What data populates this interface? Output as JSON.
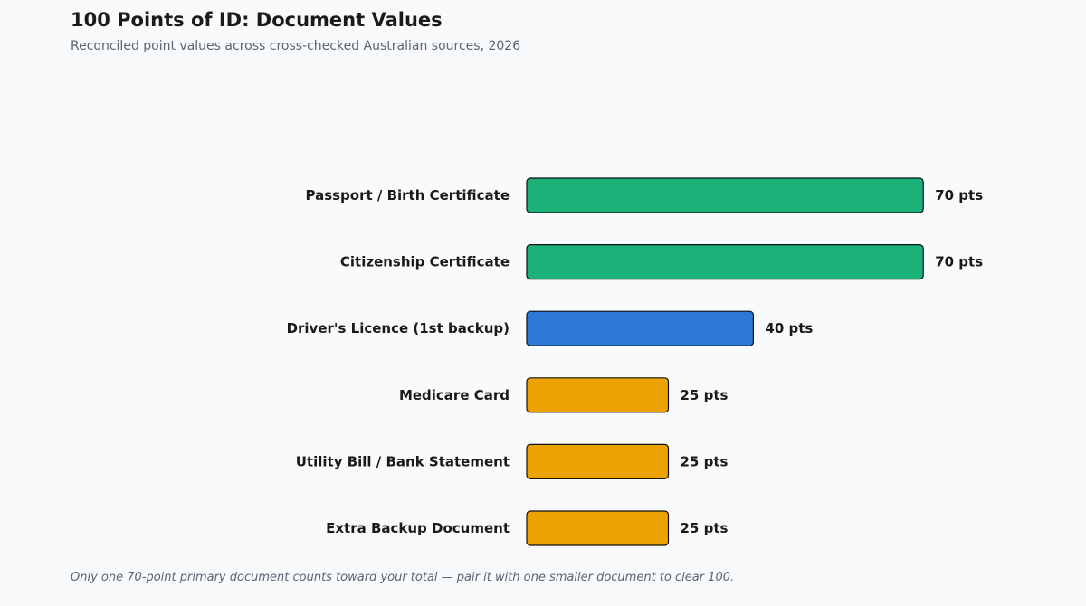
{
  "colors": {
    "background": "#f8fafc",
    "primary": "#1cb179",
    "secondary": "#2b78d8",
    "supporting": "#eca200",
    "bar_outline": "#111111"
  },
  "chart_data": {
    "type": "bar",
    "orientation": "horizontal",
    "title": "100 Points of ID: Document Values",
    "subtitle": "Reconciled point values across cross-checked Australian sources, 2026",
    "xlabel": "",
    "ylabel": "",
    "xlim": [
      0,
      100
    ],
    "grid": false,
    "legend": "none",
    "value_suffix": " pts",
    "categories": [
      "Passport / Birth Certificate",
      "Citizenship Certificate",
      "Driver's Licence (1st backup)",
      "Medicare Card",
      "Utility Bill / Bank Statement",
      "Extra Backup Document"
    ],
    "values": [
      70,
      70,
      40,
      25,
      25,
      25
    ],
    "bar_colors": [
      "#1cb179",
      "#1cb179",
      "#2b78d8",
      "#eca200",
      "#eca200",
      "#eca200"
    ],
    "value_labels": [
      "70 pts",
      "70 pts",
      "40 pts",
      "25 pts",
      "25 pts",
      "25 pts"
    ],
    "footnote": "Only one 70-point primary document counts toward your total — pair it with one smaller document to clear 100."
  }
}
